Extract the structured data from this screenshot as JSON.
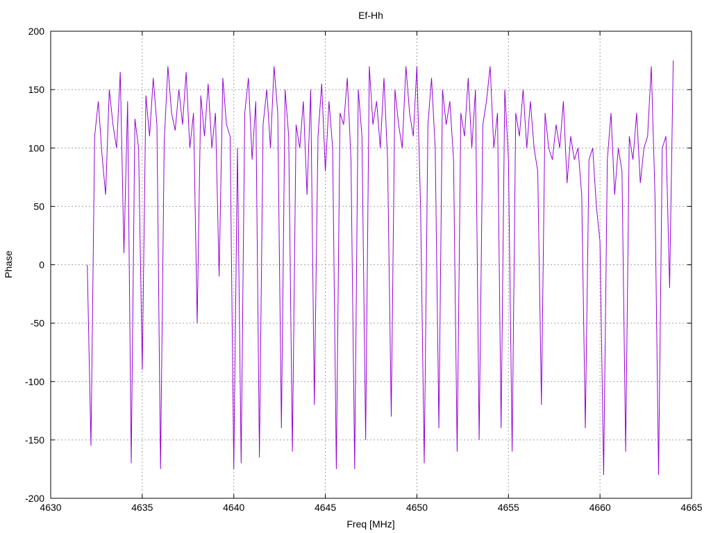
{
  "chart_data": {
    "type": "line",
    "title": "Ef-Hh",
    "xlabel": "Freq [MHz]",
    "ylabel": "Phase",
    "xlim": [
      4630,
      4665
    ],
    "ylim": [
      -200,
      200
    ],
    "xticks": [
      4630,
      4635,
      4640,
      4645,
      4650,
      4655,
      4660,
      4665
    ],
    "yticks": [
      -200,
      -150,
      -100,
      -50,
      0,
      50,
      100,
      150,
      200
    ],
    "x_range": [
      4632.0,
      4664.0
    ],
    "grid": true,
    "series": [
      {
        "color": "#9400d3",
        "x": [
          4632.0,
          4632.2,
          4632.4,
          4632.6,
          4632.8,
          4633.0,
          4633.2,
          4633.4,
          4633.6,
          4633.8,
          4634.0,
          4634.2,
          4634.4,
          4634.6,
          4634.8,
          4635.0,
          4635.2,
          4635.4,
          4635.6,
          4635.8,
          4636.0,
          4636.2,
          4636.4,
          4636.6,
          4636.8,
          4637.0,
          4637.2,
          4637.4,
          4637.6,
          4637.8,
          4638.0,
          4638.2,
          4638.4,
          4638.6,
          4638.8,
          4639.0,
          4639.2,
          4639.4,
          4639.6,
          4639.8,
          4640.0,
          4640.2,
          4640.4,
          4640.6,
          4640.8,
          4641.0,
          4641.2,
          4641.4,
          4641.6,
          4641.8,
          4642.0,
          4642.2,
          4642.4,
          4642.6,
          4642.8,
          4643.0,
          4643.2,
          4643.4,
          4643.6,
          4643.8,
          4644.0,
          4644.2,
          4644.4,
          4644.6,
          4644.8,
          4645.0,
          4645.2,
          4645.4,
          4645.6,
          4645.8,
          4646.0,
          4646.2,
          4646.4,
          4646.6,
          4646.8,
          4647.0,
          4647.2,
          4647.4,
          4647.6,
          4647.8,
          4648.0,
          4648.2,
          4648.4,
          4648.6,
          4648.8,
          4649.0,
          4649.2,
          4649.4,
          4649.6,
          4649.8,
          4650.0,
          4650.2,
          4650.4,
          4650.6,
          4650.8,
          4651.0,
          4651.2,
          4651.4,
          4651.6,
          4651.8,
          4652.0,
          4652.2,
          4652.4,
          4652.6,
          4652.8,
          4653.0,
          4653.2,
          4653.4,
          4653.6,
          4653.8,
          4654.0,
          4654.2,
          4654.4,
          4654.6,
          4654.8,
          4655.0,
          4655.2,
          4655.4,
          4655.6,
          4655.8,
          4656.0,
          4656.2,
          4656.4,
          4656.6,
          4656.8,
          4657.0,
          4657.2,
          4657.4,
          4657.6,
          4657.8,
          4658.0,
          4658.2,
          4658.4,
          4658.6,
          4658.8,
          4659.0,
          4659.2,
          4659.4,
          4659.6,
          4659.8,
          4660.0,
          4660.2,
          4660.4,
          4660.6,
          4660.8,
          4661.0,
          4661.2,
          4661.4,
          4661.6,
          4661.8,
          4662.0,
          4662.2,
          4662.4,
          4662.6,
          4662.8,
          4663.0,
          4663.2,
          4663.4,
          4663.6,
          4663.8,
          4664.0
        ],
        "y": [
          0,
          -155,
          110,
          140,
          95,
          60,
          150,
          120,
          100,
          165,
          10,
          140,
          -170,
          125,
          100,
          -90,
          145,
          110,
          160,
          120,
          -175,
          105,
          170,
          130,
          115,
          150,
          120,
          165,
          100,
          130,
          -50,
          145,
          110,
          155,
          100,
          130,
          -10,
          160,
          120,
          110,
          -175,
          100,
          -170,
          130,
          160,
          90,
          140,
          -165,
          120,
          150,
          100,
          170,
          130,
          -140,
          150,
          110,
          -160,
          120,
          100,
          140,
          60,
          150,
          -120,
          110,
          155,
          80,
          140,
          100,
          -175,
          130,
          120,
          160,
          90,
          -175,
          150,
          110,
          -150,
          170,
          120,
          140,
          100,
          160,
          90,
          -130,
          150,
          120,
          100,
          170,
          130,
          110,
          170,
          50,
          -170,
          120,
          160,
          100,
          -140,
          150,
          120,
          140,
          90,
          -160,
          130,
          110,
          160,
          100,
          150,
          -150,
          120,
          140,
          170,
          100,
          130,
          -140,
          150,
          90,
          -160,
          130,
          110,
          150,
          100,
          140,
          100,
          80,
          -120,
          130,
          100,
          90,
          120,
          100,
          140,
          70,
          110,
          90,
          100,
          60,
          -140,
          90,
          100,
          50,
          20,
          -180,
          90,
          130,
          60,
          100,
          80,
          -160,
          110,
          90,
          130,
          70,
          100,
          110,
          170,
          60,
          -180,
          100,
          110,
          -20,
          175
        ]
      }
    ]
  }
}
